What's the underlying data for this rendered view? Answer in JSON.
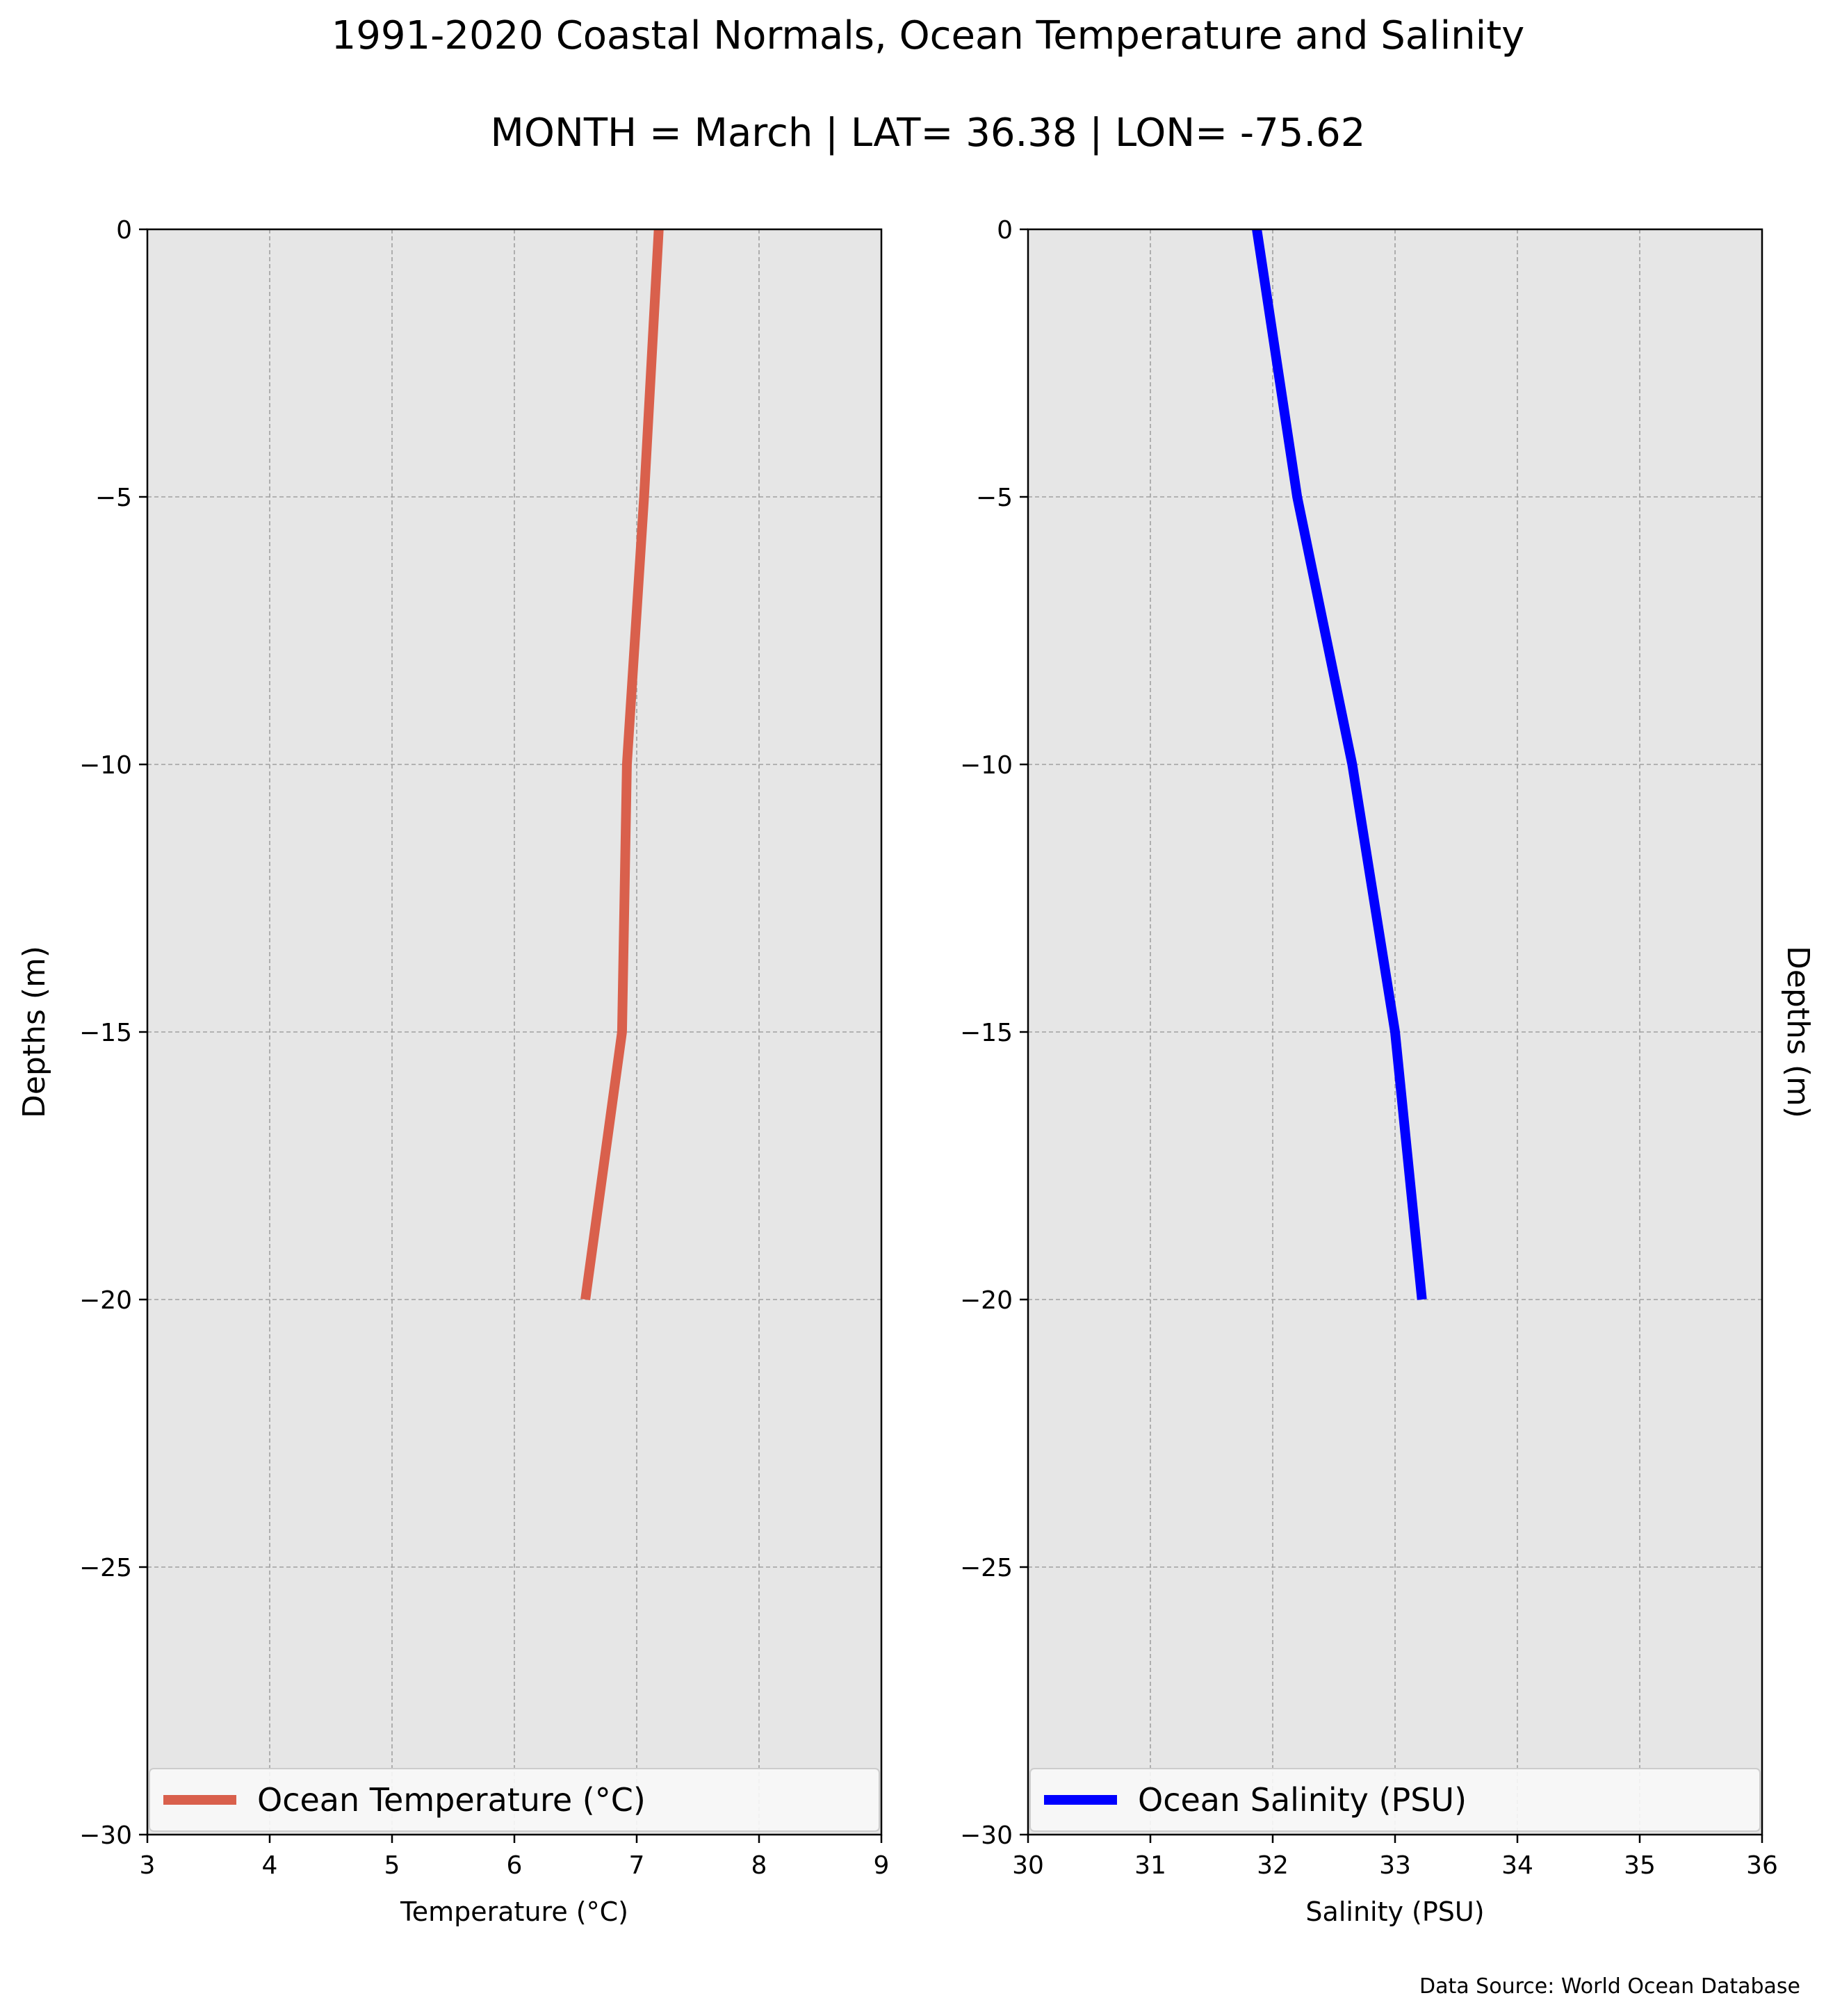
{
  "figure": {
    "title_line1": "1991-2020 Coastal Normals, Ocean Temperature and Salinity",
    "title_line2": "MONTH = March | LAT= 36.38 | LON= -75.62",
    "source": "Data Source: World Ocean Database"
  },
  "colors": {
    "plot_background": "#e6e6e6",
    "grid": "#a0a0a0",
    "temperature_line": "#d9604c",
    "salinity_line": "#0000ff",
    "legend_background": "#f8f8f8"
  },
  "chart_data": [
    {
      "type": "line",
      "title": "",
      "xlabel": "Temperature (°C)",
      "ylabel": "Depths (m)",
      "xlim": [
        3,
        9
      ],
      "ylim": [
        -30,
        0
      ],
      "x_ticks": [
        3,
        4,
        5,
        6,
        7,
        8,
        9
      ],
      "y_ticks": [
        0,
        -5,
        -10,
        -15,
        -20,
        -25,
        -30
      ],
      "grid": true,
      "legend_position": "lower center",
      "series": [
        {
          "name": "Ocean Temperature (°C)",
          "color": "#d9604c",
          "x": [
            7.18,
            7.06,
            6.92,
            6.88,
            6.58
          ],
          "y": [
            0,
            -5,
            -10,
            -15,
            -20
          ]
        }
      ]
    },
    {
      "type": "line",
      "title": "",
      "xlabel": "Salinity (PSU)",
      "ylabel": "Depths (m)",
      "ylabel_side": "right",
      "xlim": [
        30,
        36
      ],
      "ylim": [
        -30,
        0
      ],
      "x_ticks": [
        30,
        31,
        32,
        33,
        34,
        35,
        36
      ],
      "y_ticks": [
        0,
        -5,
        -10,
        -15,
        -20,
        -25,
        -30
      ],
      "grid": true,
      "legend_position": "lower center",
      "series": [
        {
          "name": "Ocean Salinity (PSU)",
          "color": "#0000ff",
          "x": [
            31.87,
            32.2,
            32.65,
            33.0,
            33.22
          ],
          "y": [
            0,
            -5,
            -10,
            -15,
            -20
          ]
        }
      ]
    }
  ]
}
